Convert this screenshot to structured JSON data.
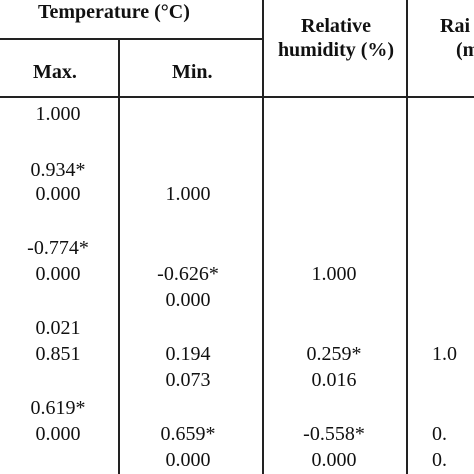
{
  "table": {
    "header": {
      "temperature_group": "Temperature (°C)",
      "max": "Max.",
      "min": "Min.",
      "relative_humidity_line1": "Relative",
      "relative_humidity_line2": "humidity (%)",
      "rain_line1": "Rai",
      "rain_line2": "(m"
    },
    "rows": [
      {
        "max": "1.000",
        "min": "",
        "rh": "",
        "rain": ""
      },
      {
        "max": "0.934*",
        "min": "",
        "rh": "",
        "rain": ""
      },
      {
        "max": "0.000",
        "min": "1.000",
        "rh": "",
        "rain": ""
      },
      {
        "max": "-0.774*",
        "min": "",
        "rh": "",
        "rain": ""
      },
      {
        "max": "0.000",
        "min": "-0.626*",
        "rh": "1.000",
        "rain": ""
      },
      {
        "max": "",
        "min": "0.000",
        "rh": "",
        "rain": ""
      },
      {
        "max": "0.021",
        "min": "",
        "rh": "",
        "rain": ""
      },
      {
        "max": "0.851",
        "min": "0.194",
        "rh": "0.259*",
        "rain": "1.0"
      },
      {
        "max": "",
        "min": "0.073",
        "rh": "0.016",
        "rain": ""
      },
      {
        "max": "0.619*",
        "min": "",
        "rh": "",
        "rain": ""
      },
      {
        "max": "0.000",
        "min": "0.659*",
        "rh": "-0.558*",
        "rain": "0."
      },
      {
        "max": "",
        "min": "0.000",
        "rh": "0.000",
        "rain": "0."
      }
    ]
  }
}
